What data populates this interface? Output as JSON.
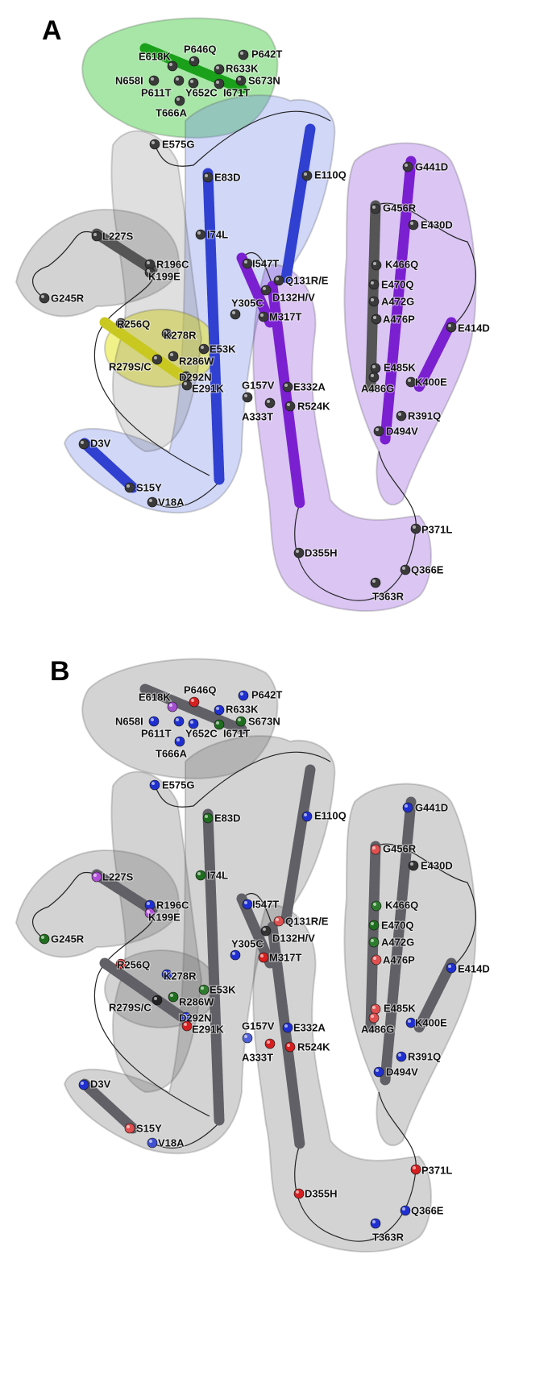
{
  "panels": [
    {
      "label": "A",
      "mutations": [
        "E618K",
        "P646Q",
        "P642T",
        "R633K",
        "S673N",
        "N658I",
        "P611T",
        "Y652C",
        "I671T",
        "T666A",
        "E575G",
        "E83D",
        "E110Q",
        "G441D",
        "G456R",
        "E430D",
        "L227S",
        "I74L",
        "R196C",
        "K199E",
        "K466Q",
        "I547T",
        "Q131R/E",
        "E470Q",
        "D132H/V",
        "G245R",
        "Y305C",
        "M317T",
        "A472G",
        "A476P",
        "R256Q",
        "E414D",
        "K278R",
        "E53K",
        "R279S/C",
        "R286W",
        "D292N",
        "E291K",
        "G157V",
        "E332A",
        "E485K",
        "A486G",
        "K400E",
        "A333T",
        "R524K",
        "R391Q",
        "D494V",
        "D3V",
        "S15Y",
        "V18A",
        "P371L",
        "D355H",
        "Q366E",
        "T363R"
      ]
    },
    {
      "label": "B",
      "mutations": [
        {
          "name": "E618K",
          "color": "#a24fd0"
        },
        {
          "name": "P646Q",
          "color": "#d42020"
        },
        {
          "name": "P642T",
          "color": "#2030d0"
        },
        {
          "name": "R633K",
          "color": "#2030d0"
        },
        {
          "name": "S673N",
          "color": "#1f6e1f"
        },
        {
          "name": "N658I",
          "color": "#2030d0"
        },
        {
          "name": "P611T",
          "color": "#2030d0"
        },
        {
          "name": "Y652C",
          "color": "#2030d0"
        },
        {
          "name": "I671T",
          "color": "#1f6e1f"
        },
        {
          "name": "T666A",
          "color": "#2030d0"
        },
        {
          "name": "E575G",
          "color": "#2030d0"
        },
        {
          "name": "E83D",
          "color": "#1f6e1f"
        },
        {
          "name": "E110Q",
          "color": "#2030d0"
        },
        {
          "name": "G441D",
          "color": "#2030d0"
        },
        {
          "name": "G456R",
          "color": "#e05050"
        },
        {
          "name": "E430D",
          "color": "#333333"
        },
        {
          "name": "L227S",
          "color": "#b050d8"
        },
        {
          "name": "I74L",
          "color": "#1f6e1f"
        },
        {
          "name": "R196C",
          "color": "#2030d0"
        },
        {
          "name": "K199E",
          "color": "#b050d8"
        },
        {
          "name": "K466Q",
          "color": "#2e7d2e"
        },
        {
          "name": "I547T",
          "color": "#2030d0"
        },
        {
          "name": "Q131R/E",
          "color": "#e05050"
        },
        {
          "name": "E470Q",
          "color": "#1f6e1f"
        },
        {
          "name": "D132H/V",
          "color": "#333333"
        },
        {
          "name": "G245R",
          "color": "#1f6e1f"
        },
        {
          "name": "Y305C",
          "color": "#2030d0"
        },
        {
          "name": "M317T",
          "color": "#d42020"
        },
        {
          "name": "A472G",
          "color": "#2e7d2e"
        },
        {
          "name": "A476P",
          "color": "#e05050"
        },
        {
          "name": "R256Q",
          "color": "#d42020"
        },
        {
          "name": "E414D",
          "color": "#2030d0"
        },
        {
          "name": "K278R",
          "color": "#2030d0"
        },
        {
          "name": "E53K",
          "color": "#2e7d2e"
        },
        {
          "name": "R279S/C",
          "color": "#222222"
        },
        {
          "name": "R286W",
          "color": "#1f6e1f"
        },
        {
          "name": "D292N",
          "color": "#2030d0"
        },
        {
          "name": "E291K",
          "color": "#d42020"
        },
        {
          "name": "G157V",
          "color": "#5060d8"
        },
        {
          "name": "E332A",
          "color": "#2030d0"
        },
        {
          "name": "E485K",
          "color": "#e05050"
        },
        {
          "name": "A486G",
          "color": "#e05050"
        },
        {
          "name": "K400E",
          "color": "#2030d0"
        },
        {
          "name": "A333T",
          "color": "#d42020"
        },
        {
          "name": "R524K",
          "color": "#d42020"
        },
        {
          "name": "R391Q",
          "color": "#2030d0"
        },
        {
          "name": "D494V",
          "color": "#2030d0"
        },
        {
          "name": "D3V",
          "color": "#2030d0"
        },
        {
          "name": "S15Y",
          "color": "#e05050"
        },
        {
          "name": "V18A",
          "color": "#4050d0"
        },
        {
          "name": "P371L",
          "color": "#d42020"
        },
        {
          "name": "D355H",
          "color": "#d42020"
        },
        {
          "name": "Q366E",
          "color": "#2030d0"
        },
        {
          "name": "T363R",
          "color": "#2030d0"
        }
      ]
    }
  ]
}
